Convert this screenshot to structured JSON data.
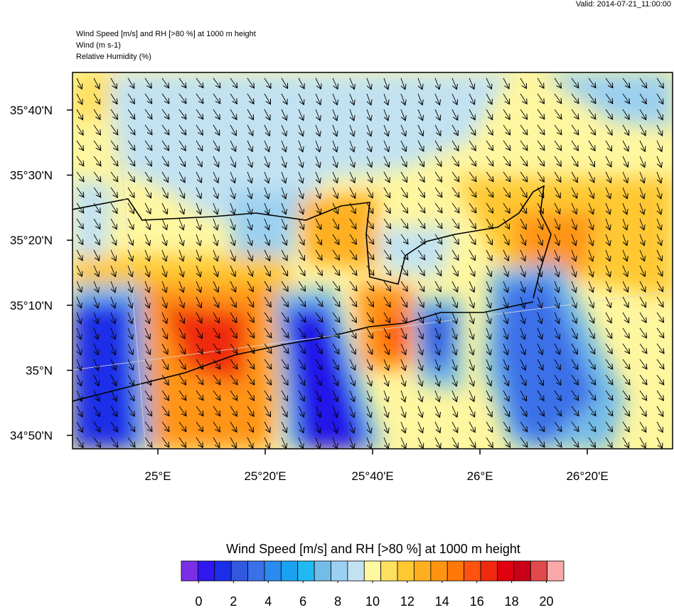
{
  "header": {
    "valid": "Valid: 2014-07-21_11:00:00",
    "title_lines": [
      "Wind Speed [m/s] and RH [>80 %] at 1000 m height",
      "Wind   (m s-1)",
      "Relative Humidity   (%)"
    ]
  },
  "chart_data": {
    "type": "map",
    "xlim": [
      24.735,
      26.598
    ],
    "ylim": [
      34.799,
      35.763
    ],
    "xticks": [
      {
        "value": 25,
        "label": "25°E"
      },
      {
        "value": 25.3333,
        "label": "25°20'E"
      },
      {
        "value": 25.6667,
        "label": "25°40'E"
      },
      {
        "value": 26,
        "label": "26°E"
      },
      {
        "value": 26.3333,
        "label": "26°20'E"
      }
    ],
    "yticks": [
      {
        "value": 35.6667,
        "label": "35°40'N"
      },
      {
        "value": 35.5,
        "label": "35°30'N"
      },
      {
        "value": 35.3333,
        "label": "35°20'N"
      },
      {
        "value": 35.1667,
        "label": "35°10'N"
      },
      {
        "value": 35,
        "label": "35°N"
      },
      {
        "value": 34.8333,
        "label": "34°50'N"
      }
    ],
    "colorbar": {
      "title": "Wind Speed [m/s] and RH [>80 %] at 1000 m height",
      "lim": [
        -1,
        21
      ],
      "ticks": [
        0,
        2,
        4,
        6,
        8,
        10,
        12,
        14,
        16,
        18,
        20
      ],
      "colors": [
        "#7a2ee6",
        "#3018f0",
        "#1a2ee8",
        "#3258e0",
        "#3a70e8",
        "#2a8af0",
        "#1aa2f0",
        "#20baf0",
        "#74bce8",
        "#9cd0f0",
        "#c2e2f2",
        "#fff8a0",
        "#ffe060",
        "#ffc830",
        "#ffb020",
        "#ff9412",
        "#ff7808",
        "#ff5210",
        "#f02a10",
        "#e00010",
        "#c80018",
        "#e04a4a",
        "#f8a8a8"
      ]
    }
  }
}
